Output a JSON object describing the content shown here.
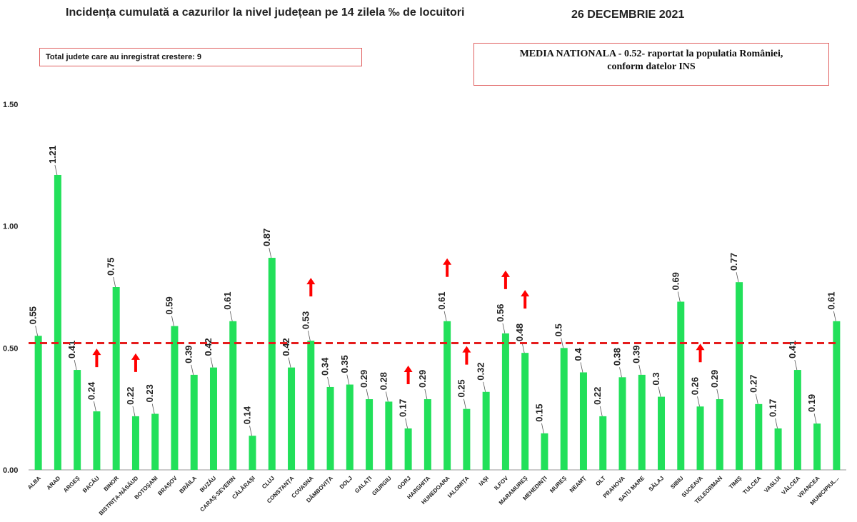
{
  "header": {
    "title": "Incidența cumulată a cazurilor la nivel județean pe 14 zilela ‰ de locuitori",
    "date": "26 DECEMBRIE 2021"
  },
  "info_left": "Total judete care au inregistrat crestere: 9",
  "info_right": {
    "line1": "MEDIA NATIONALA - 0.52- raportat la populatia României,",
    "line2": "conform datelor INS"
  },
  "chart_data": {
    "type": "bar",
    "categories": [
      "ALBA",
      "ARAD",
      "ARGEȘ",
      "BACĂU",
      "BIHOR",
      "BISTRIȚA-NĂSĂUD",
      "BOTOȘANI",
      "BRAȘOV",
      "BRĂILA",
      "BUZĂU",
      "CARAȘ-SEVERIN",
      "CĂLĂRAȘI",
      "CLUJ",
      "CONSTANȚA",
      "COVASNA",
      "DÂMBOVIȚA",
      "DOLJ",
      "GALAȚI",
      "GIURGIU",
      "GORJ",
      "HARGHITA",
      "HUNEDOARA",
      "IALOMIȚA",
      "IAȘI",
      "ILFOV",
      "MARAMUREȘ",
      "MEHEDINȚI",
      "MUREȘ",
      "NEAMȚ",
      "OLT",
      "PRAHOVA",
      "SATU MARE",
      "SĂLAJ",
      "SIBIU",
      "SUCEAVA",
      "TELEORMAN",
      "TIMIȘ",
      "TULCEA",
      "VASLUI",
      "VÂLCEA",
      "VRANCEA",
      "MUNICIPIUL..."
    ],
    "values": [
      0.55,
      1.21,
      0.41,
      0.24,
      0.75,
      0.22,
      0.23,
      0.59,
      0.39,
      0.42,
      0.61,
      0.14,
      0.87,
      0.42,
      0.53,
      0.34,
      0.35,
      0.29,
      0.28,
      0.17,
      0.29,
      0.61,
      0.25,
      0.32,
      0.56,
      0.48,
      0.15,
      0.5,
      0.4,
      0.22,
      0.38,
      0.39,
      0.3,
      0.69,
      0.26,
      0.29,
      0.77,
      0.27,
      0.17,
      0.41,
      0.19,
      0.61
    ],
    "value_labels": [
      "0.55",
      "1.21",
      "0.41",
      "0.24",
      "0.75",
      "0.22",
      "0.23",
      "0.59",
      "0.39",
      "0.42",
      "0.61",
      "0.14",
      "0.87",
      "0.42",
      "0.53",
      "0.34",
      "0.35",
      "0.29",
      "0.28",
      "0.17",
      "0.29",
      "0.61",
      "0.25",
      "0.32",
      "0.56",
      "0.48",
      "0.15",
      "0.5",
      "0.4",
      "0.22",
      "0.38",
      "0.39",
      "0.3",
      "0.69",
      "0.26",
      "0.29",
      "0.77",
      "0.27",
      "0.17",
      "0.41",
      "0.19",
      "0.61"
    ],
    "increase_arrows": [
      "BACĂU",
      "BISTRIȚA-NĂSĂUD",
      "COVASNA",
      "GORJ",
      "HUNEDOARA",
      "IALOMIȚA",
      "ILFOV",
      "MARAMUREȘ",
      "SUCEAVA"
    ],
    "reference_line": 0.52,
    "yticks": [
      "0.00",
      "0.50",
      "1.00",
      "1.50"
    ],
    "ylim": [
      0,
      1.5
    ],
    "grid": false,
    "colors": {
      "bar": "#22e05a",
      "reference_line": "#e51c1c",
      "arrow": "#ff0000"
    }
  }
}
